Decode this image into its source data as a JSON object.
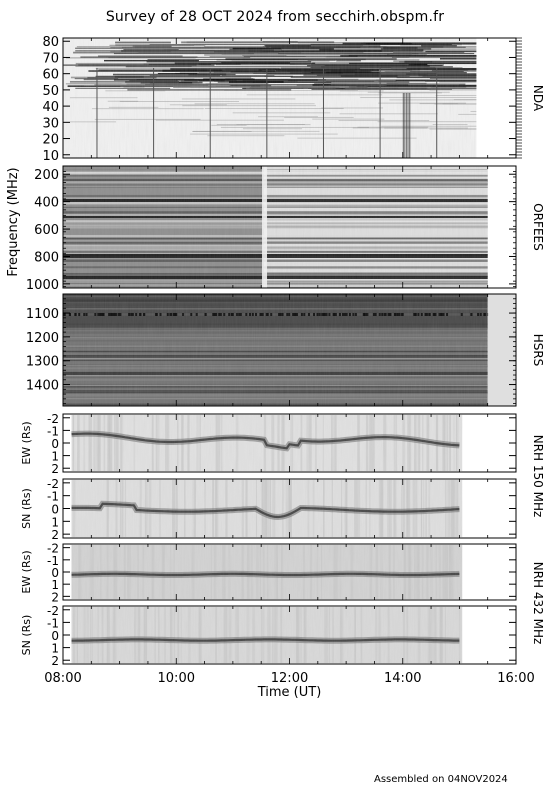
{
  "header": {
    "title": "Survey of 28 OCT 2024 from secchirh.obspm.fr"
  },
  "footer": {
    "assembled": "Assembled on 04NOV2024"
  },
  "chart_data": {
    "type": "heatmap",
    "xlabel": "Time (UT)",
    "x_ticks": [
      "08:00",
      "10:00",
      "12:00",
      "14:00",
      "16:00"
    ],
    "xlim_hours": [
      8,
      16
    ],
    "shared_ylabel": "Frequency (MHz)",
    "panels": [
      {
        "id": "nda",
        "instrument": "NDA",
        "ylim": [
          82,
          8
        ],
        "y_ticks": [
          10,
          20,
          30,
          40,
          50,
          60,
          70,
          80
        ],
        "data_end_hours": 15.3,
        "spikes_hours": [
          8.6,
          9.6,
          10.6,
          11.6,
          12.6,
          13.6,
          14.6
        ]
      },
      {
        "id": "orfees",
        "instrument": "ORFEES",
        "ylim": [
          140,
          1030
        ],
        "y_ticks": [
          200,
          400,
          600,
          800,
          1000
        ],
        "data_end_hours": 15.5
      },
      {
        "id": "hsrs",
        "instrument": "HSRS",
        "ylim": [
          1020,
          1490
        ],
        "y_ticks": [
          1100,
          1200,
          1300,
          1400
        ],
        "data_end_hours": 15.5
      },
      {
        "id": "nrh150ew",
        "ylabel": "EW (Rs)",
        "ylim": [
          -2.3,
          2.3
        ],
        "y_ticks": [
          2,
          1,
          0,
          -1,
          -2
        ],
        "data_start_hours": 8.15,
        "data_end_hours": 15.05
      },
      {
        "id": "nrh150sn",
        "ylabel": "SN (Rs)",
        "ylim": [
          -2.3,
          2.3
        ],
        "y_ticks": [
          2,
          1,
          0,
          -1,
          -2
        ],
        "data_start_hours": 8.15,
        "data_end_hours": 15.05
      },
      {
        "id": "nrh432ew",
        "ylabel": "EW (Rs)",
        "ylim": [
          -2.3,
          2.3
        ],
        "y_ticks": [
          2,
          1,
          0,
          -1,
          -2
        ],
        "data_start_hours": 8.15,
        "data_end_hours": 15.05
      },
      {
        "id": "nrh432sn",
        "ylabel": "SN (Rs)",
        "ylim": [
          -2.3,
          2.3
        ],
        "y_ticks": [
          2,
          1,
          0,
          -1,
          -2
        ],
        "data_start_hours": 8.15,
        "data_end_hours": 15.05
      }
    ],
    "right_labels": [
      {
        "id": "nda_label",
        "text": "NDA"
      },
      {
        "id": "orfees_label",
        "text": "ORFEES"
      },
      {
        "id": "hsrs_label",
        "text": "HSRS"
      },
      {
        "id": "nrh150_label",
        "text": "NRH 150 MHz"
      },
      {
        "id": "nrh432_label",
        "text": "NRH 432 MHz"
      }
    ],
    "grid": false,
    "legend": "none"
  }
}
